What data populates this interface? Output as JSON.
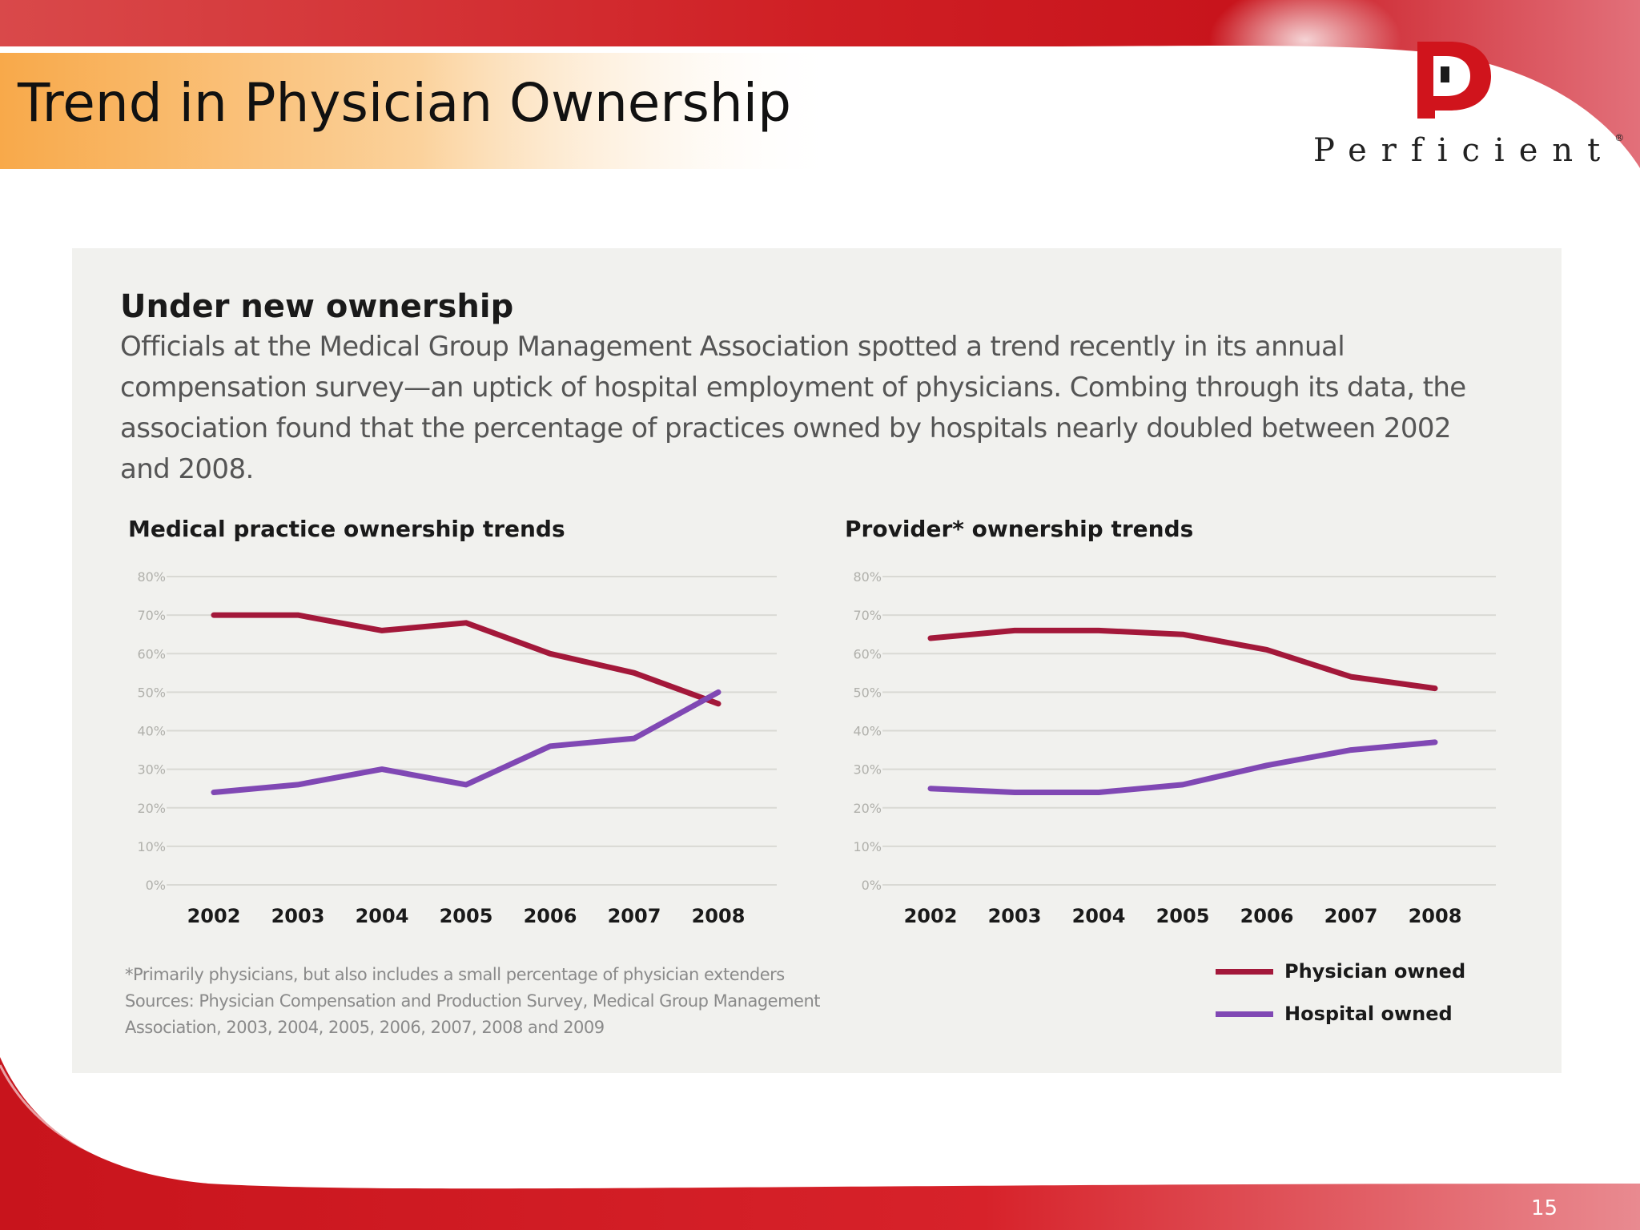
{
  "slide": {
    "title": "Trend in Physician Ownership",
    "logo_text": "Perficient",
    "logo_trademark": "®",
    "logo_letter": "P",
    "page_number": "15"
  },
  "figure": {
    "headline": "Under new ownership",
    "deck": "Officials at the Medical Group Management Association spotted a trend recently in its annual compensation survey—an uptick of hospital employment of physicians. Combing through its data, the association found that the percentage of practices owned by hospitals nearly doubled between 2002 and 2008.",
    "footnote_1": "*Primarily physicians, but also includes a small percentage of physician extenders",
    "footnote_2": "Sources: Physician Compensation and Production Survey, Medical Group Management",
    "footnote_3": "Association, 2003, 2004, 2005, 2006, 2007, 2008 and 2009",
    "legend": [
      {
        "label": "Physician owned",
        "color": "#a3183a"
      },
      {
        "label": "Hospital owned",
        "color": "#8048b4"
      }
    ]
  },
  "colors": {
    "physician": "#a3183a",
    "hospital": "#8048b4",
    "brand_red": "#c8141c",
    "title_band": "#f8a94a"
  },
  "chart_data": [
    {
      "type": "line",
      "title": "Medical practice ownership trends",
      "categories": [
        "2002",
        "2003",
        "2004",
        "2005",
        "2006",
        "2007",
        "2008"
      ],
      "y_ticks": [
        "80%",
        "70%",
        "60%",
        "50%",
        "40%",
        "30%",
        "20%",
        "10%",
        "0%"
      ],
      "ylim": [
        0,
        80
      ],
      "grid": true,
      "series": [
        {
          "name": "Physician owned",
          "values": [
            70,
            70,
            66,
            68,
            60,
            55,
            47
          ]
        },
        {
          "name": "Hospital owned",
          "values": [
            24,
            26,
            30,
            26,
            36,
            38,
            50
          ]
        }
      ]
    },
    {
      "type": "line",
      "title": "Provider* ownership trends",
      "categories": [
        "2002",
        "2003",
        "2004",
        "2005",
        "2006",
        "2007",
        "2008"
      ],
      "y_ticks": [
        "80%",
        "70%",
        "60%",
        "50%",
        "40%",
        "30%",
        "20%",
        "10%",
        "0%"
      ],
      "ylim": [
        0,
        80
      ],
      "grid": true,
      "series": [
        {
          "name": "Physician owned",
          "values": [
            64,
            66,
            66,
            65,
            61,
            54,
            51
          ]
        },
        {
          "name": "Hospital owned",
          "values": [
            25,
            24,
            24,
            26,
            31,
            35,
            37
          ]
        }
      ]
    }
  ]
}
